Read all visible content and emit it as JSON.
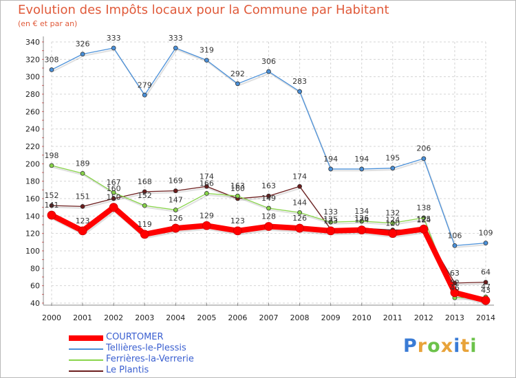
{
  "header": {
    "title": "Evolution des Impôts locaux pour la Commune par Habitant",
    "subtitle": "(en € et par an)"
  },
  "brand": {
    "text": "Proxiti",
    "colors": [
      "#3a7bd5",
      "#e8a33a",
      "#6cc24a",
      "#e8a33a",
      "#3a7bd5",
      "#e8a33a",
      "#6cc24a"
    ]
  },
  "chart_data": {
    "type": "line",
    "title": "Evolution des Impôts locaux pour la Commune par Habitant",
    "subtitle": "(en € et par an)",
    "xlabel": "",
    "ylabel": "",
    "x": [
      "2000",
      "2001",
      "2002",
      "2003",
      "2004",
      "2005",
      "2006",
      "2007",
      "2008",
      "2009",
      "2010",
      "2011",
      "2012",
      "2013",
      "2014"
    ],
    "ylim": [
      40,
      340
    ],
    "yticks": [
      40,
      60,
      80,
      100,
      120,
      140,
      160,
      180,
      200,
      220,
      240,
      260,
      280,
      300,
      320,
      340
    ],
    "grid": true,
    "legend": "bottom-left",
    "series": [
      {
        "name": "Le Plantis",
        "color": "#6b1c1c",
        "values": [
          152,
          151,
          160,
          168,
          169,
          174,
          160,
          163,
          174,
          125,
          126,
          124,
          124,
          63,
          64
        ],
        "labels": [
          "152",
          "151",
          "160",
          "168",
          "169",
          "174",
          "160",
          "163",
          "174",
          "125",
          "126",
          "124",
          "124",
          "63",
          "64"
        ]
      },
      {
        "name": "Ferrières-la-Verrerie",
        "color": "#88d44a",
        "values": [
          198,
          189,
          167,
          152,
          147,
          166,
          163,
          149,
          144,
          133,
          134,
          132,
          138,
          46,
          47
        ],
        "labels": [
          "198",
          "189",
          "167",
          "152",
          "147",
          "166",
          "163",
          "149",
          "144",
          "133",
          "134",
          "132",
          "138",
          "46",
          "47"
        ]
      },
      {
        "name": "Tellières-le-Plessis",
        "color": "#4a90d9",
        "values": [
          308,
          326,
          333,
          279,
          333,
          319,
          292,
          306,
          283,
          194,
          194,
          195,
          206,
          106,
          109
        ],
        "labels": [
          "308",
          "326",
          "333",
          "279",
          "333",
          "319",
          "292",
          "306",
          "283",
          "194",
          "194",
          "195",
          "206",
          "106",
          "109"
        ]
      },
      {
        "name": "COURTOMER",
        "color": "#ff0000",
        "values": [
          141,
          123,
          150,
          119,
          126,
          129,
          123,
          128,
          126,
          123,
          124,
          120,
          125,
          52,
          43
        ],
        "labels": [
          "141",
          "123",
          "150",
          "119",
          "126",
          "129",
          "123",
          "128",
          "126",
          "123",
          "124",
          "120",
          "125",
          "52",
          "43"
        ]
      }
    ],
    "legend_order": [
      "COURTOMER",
      "Tellières-le-Plessis",
      "Ferrières-la-Verrerie",
      "Le Plantis"
    ]
  }
}
